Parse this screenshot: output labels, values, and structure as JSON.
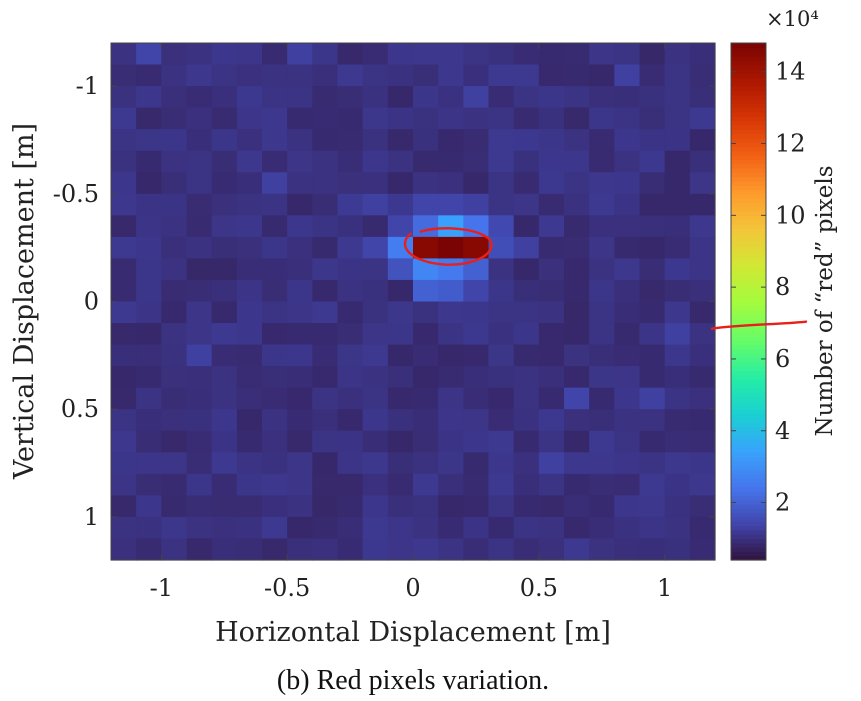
{
  "chart_data": {
    "type": "heatmap",
    "title": "",
    "xlabel": "Horizontal Displacement [m]",
    "ylabel": "Vertical Displacement [m]",
    "colorbar_label": "Number of “red” pixels",
    "colorbar_exponent": "×10⁴",
    "caption": "(b) Red pixels variation.",
    "x_range": [
      -1.2,
      1.2
    ],
    "y_range": [
      -1.2,
      1.2
    ],
    "y_reversed": true,
    "x_ticks": [
      {
        "value": -1,
        "label": "-1"
      },
      {
        "value": -0.5,
        "label": "-0.5"
      },
      {
        "value": 0,
        "label": "0"
      },
      {
        "value": 0.5,
        "label": "0.5"
      },
      {
        "value": 1,
        "label": "1"
      }
    ],
    "y_ticks": [
      {
        "value": -1,
        "label": "-1"
      },
      {
        "value": -0.5,
        "label": "-0.5"
      },
      {
        "value": 0,
        "label": "0"
      },
      {
        "value": 0.5,
        "label": "0.5"
      },
      {
        "value": 1,
        "label": "1"
      }
    ],
    "colorbar_range": [
      0.4,
      14.8
    ],
    "colorbar_ticks": [
      {
        "value": 2,
        "label": "2"
      },
      {
        "value": 4,
        "label": "4"
      },
      {
        "value": 6,
        "label": "6"
      },
      {
        "value": 8,
        "label": "8"
      },
      {
        "value": 10,
        "label": "10"
      },
      {
        "value": 12,
        "label": "12"
      },
      {
        "value": 14,
        "label": "14"
      }
    ],
    "colormap": "turbo",
    "grid": false,
    "cell_size_m": 0.1,
    "background_value": 1.0,
    "cells": [
      {
        "x": 0.05,
        "y": -0.35,
        "value": 2.2
      },
      {
        "x": 0.15,
        "y": -0.35,
        "value": 3.4
      },
      {
        "x": 0.25,
        "y": -0.35,
        "value": 2.4
      },
      {
        "x": 0.05,
        "y": -0.25,
        "value": 14.5
      },
      {
        "x": 0.15,
        "y": -0.25,
        "value": 14.8
      },
      {
        "x": 0.25,
        "y": -0.25,
        "value": 14.5
      },
      {
        "x": -0.05,
        "y": -0.25,
        "value": 2.6
      },
      {
        "x": 0.35,
        "y": -0.25,
        "value": 1.6
      },
      {
        "x": 0.05,
        "y": -0.15,
        "value": 2.8
      },
      {
        "x": 0.15,
        "y": -0.15,
        "value": 2.5
      },
      {
        "x": 0.25,
        "y": -0.15,
        "value": 2.0
      },
      {
        "x": -0.05,
        "y": -0.15,
        "value": 1.7
      },
      {
        "x": 0.05,
        "y": -0.05,
        "value": 2.0
      },
      {
        "x": 0.15,
        "y": -0.05,
        "value": 1.9
      },
      {
        "x": 0.25,
        "y": -0.05,
        "value": 1.4
      },
      {
        "x": -0.05,
        "y": -0.35,
        "value": 1.4
      },
      {
        "x": 0.35,
        "y": -0.35,
        "value": 1.5
      },
      {
        "x": -0.15,
        "y": -0.25,
        "value": 1.4
      },
      {
        "x": 0.45,
        "y": -0.25,
        "value": 1.3
      },
      {
        "x": -0.15,
        "y": -0.45,
        "value": 1.3
      },
      {
        "x": 0.05,
        "y": -0.45,
        "value": 1.4
      },
      {
        "x": 0.15,
        "y": -0.45,
        "value": 1.4
      },
      {
        "x": 0.25,
        "y": -0.45,
        "value": 1.3
      },
      {
        "x": -0.25,
        "y": -0.45,
        "value": 1.2
      },
      {
        "x": -1.05,
        "y": -1.15,
        "value": 1.4
      },
      {
        "x": -0.45,
        "y": -1.15,
        "value": 1.3
      },
      {
        "x": 0.25,
        "y": -0.95,
        "value": 1.3
      },
      {
        "x": 0.85,
        "y": -1.05,
        "value": 1.3
      },
      {
        "x": 0.65,
        "y": 0.45,
        "value": 1.4
      },
      {
        "x": 0.95,
        "y": 0.45,
        "value": 1.3
      },
      {
        "x": 1.05,
        "y": 0.15,
        "value": 1.3
      },
      {
        "x": -0.55,
        "y": -0.55,
        "value": 1.3
      },
      {
        "x": -0.85,
        "y": 0.25,
        "value": 1.3
      },
      {
        "x": 0.55,
        "y": 0.75,
        "value": 1.3
      }
    ],
    "annotations": [
      {
        "type": "hand-drawn circle",
        "color": "#e8201a",
        "around": {
          "x": 0.15,
          "y": -0.25
        }
      },
      {
        "type": "hand-drawn line",
        "color": "#e8201a",
        "on_colorbar_value": 6.9
      }
    ]
  }
}
